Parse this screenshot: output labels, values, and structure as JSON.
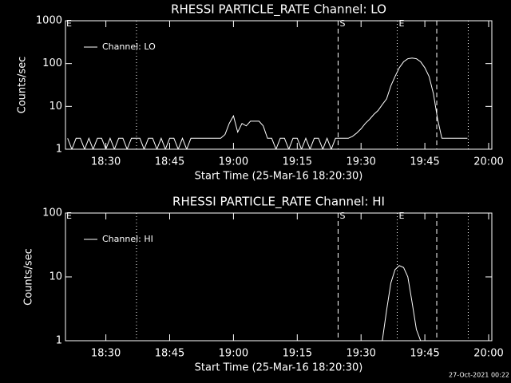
{
  "chart_data": [
    {
      "type": "line",
      "title": "RHESSI PARTICLE_RATE Channel: LO",
      "xlabel": "Start Time (25-Mar-16 18:20:30)",
      "ylabel": "Counts/sec",
      "log_y": true,
      "corner_label": "E",
      "x": [
        1101,
        1102,
        1103,
        1104,
        1105,
        1106,
        1107,
        1108,
        1109,
        1110,
        1111,
        1112,
        1113,
        1114,
        1115,
        1116,
        1117,
        1118,
        1119,
        1120,
        1121,
        1122,
        1123,
        1124,
        1125,
        1126,
        1127,
        1128,
        1129,
        1130,
        1131,
        1132,
        1133,
        1134,
        1135,
        1136,
        1137,
        1138,
        1139,
        1140,
        1141,
        1142,
        1143,
        1144,
        1145,
        1146,
        1147,
        1148,
        1149,
        1150,
        1151,
        1152,
        1153,
        1154,
        1155,
        1156,
        1157,
        1158,
        1159,
        1160,
        1161,
        1162,
        1163,
        1164,
        1165,
        1166,
        1167,
        1168,
        1169,
        1170,
        1171,
        1172,
        1173,
        1174,
        1175,
        1176,
        1177,
        1178,
        1179,
        1180,
        1181,
        1182,
        1183,
        1184,
        1185,
        1186,
        1187,
        1188,
        1189,
        1190,
        1191,
        1192,
        1193,
        1194,
        1195
      ],
      "series": [
        {
          "name": "Channel: LO",
          "color": "#ffffff",
          "values": [
            1.8,
            1,
            1.8,
            1.8,
            1,
            1.8,
            1,
            1.8,
            1.8,
            1,
            1.8,
            1,
            1.8,
            1.8,
            1,
            1.8,
            1.8,
            1.8,
            1,
            1.8,
            1.8,
            1,
            1.8,
            1,
            1.8,
            1.8,
            1,
            1.8,
            1,
            1.8,
            1.8,
            1.8,
            1.8,
            1.8,
            1.8,
            1.8,
            1.8,
            2.2,
            4,
            6,
            2.5,
            4,
            3.5,
            4.5,
            4.5,
            4.5,
            3.5,
            1.8,
            1.8,
            1,
            1.8,
            1.8,
            1,
            1.8,
            1.8,
            1,
            1.8,
            1,
            1.8,
            1.8,
            1,
            1.8,
            1,
            1.8,
            1.8,
            1.8,
            1.8,
            2,
            2.4,
            3,
            4,
            5,
            6.5,
            8,
            11,
            15,
            30,
            50,
            80,
            110,
            130,
            135,
            130,
            110,
            80,
            50,
            20,
            5,
            1.8,
            1.8,
            1.8,
            1.8,
            1.8,
            1.8,
            1.8
          ]
        }
      ],
      "xlim": [
        1100.5,
        1200.75
      ],
      "ylim": [
        1,
        1000
      ],
      "xticks": [
        {
          "value": 1110,
          "label": "18:30"
        },
        {
          "value": 1125,
          "label": "18:45"
        },
        {
          "value": 1140,
          "label": "19:00"
        },
        {
          "value": 1155,
          "label": "19:15"
        },
        {
          "value": 1170,
          "label": "19:30"
        },
        {
          "value": 1185,
          "label": "19:45"
        },
        {
          "value": 1200,
          "label": "20:00"
        }
      ],
      "yticks": [
        1,
        10,
        100,
        1000
      ],
      "markers": [
        {
          "value": 1117.2,
          "style": "dotted"
        },
        {
          "value": 1164.6,
          "style": "dashed",
          "label": "S"
        },
        {
          "value": 1178.5,
          "style": "dotted",
          "label": "E"
        },
        {
          "value": 1187.8,
          "style": "dashed"
        },
        {
          "value": 1195.2,
          "style": "dotted"
        }
      ]
    },
    {
      "type": "line",
      "title": "RHESSI PARTICLE_RATE Channel: HI",
      "xlabel": "Start Time (25-Mar-16 18:20:30)",
      "ylabel": "Counts/sec",
      "log_y": true,
      "corner_label": "E",
      "x": [
        1175,
        1176,
        1177,
        1178,
        1179,
        1180,
        1181,
        1182,
        1183,
        1184
      ],
      "series": [
        {
          "name": "Channel: HI",
          "color": "#ffffff",
          "values": [
            1,
            3,
            8,
            13,
            15,
            14,
            10,
            4,
            1.5,
            1
          ]
        }
      ],
      "xlim": [
        1100.5,
        1200.75
      ],
      "ylim": [
        1,
        100
      ],
      "xticks": [
        {
          "value": 1110,
          "label": "18:30"
        },
        {
          "value": 1125,
          "label": "18:45"
        },
        {
          "value": 1140,
          "label": "19:00"
        },
        {
          "value": 1155,
          "label": "19:15"
        },
        {
          "value": 1170,
          "label": "19:30"
        },
        {
          "value": 1185,
          "label": "19:45"
        },
        {
          "value": 1200,
          "label": "20:00"
        }
      ],
      "yticks": [
        1,
        10,
        100
      ],
      "markers": [
        {
          "value": 1117.2,
          "style": "dotted"
        },
        {
          "value": 1164.6,
          "style": "dashed",
          "label": "S"
        },
        {
          "value": 1178.5,
          "style": "dotted",
          "label": "E"
        },
        {
          "value": 1187.8,
          "style": "dashed"
        },
        {
          "value": 1195.2,
          "style": "dotted"
        }
      ]
    }
  ],
  "footer": "27-Oct-2021 00:22"
}
